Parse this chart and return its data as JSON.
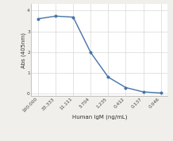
{
  "x_labels": [
    "100.000",
    "33.333",
    "11.111",
    "3.704",
    "1.235",
    "0.412",
    "0.137",
    "0.046"
  ],
  "y_values": [
    3.6,
    3.73,
    3.68,
    1.98,
    0.8,
    0.3,
    0.09,
    0.04
  ],
  "line_color": "#4472a8",
  "marker_color": "#4472a8",
  "marker_style": "o",
  "marker_size": 2.5,
  "line_width": 1.0,
  "xlabel": "Human IgM (ng/mL)",
  "ylabel": "Abs (405nm)",
  "ylim": [
    -0.1,
    4.3
  ],
  "yticks": [
    0,
    1,
    2,
    3,
    4
  ],
  "background_color": "#f0efeb",
  "plot_bg_color": "#ffffff",
  "grid_color": "#d8d8d8",
  "xlabel_fontsize": 5.0,
  "ylabel_fontsize": 5.0,
  "tick_fontsize": 4.2
}
